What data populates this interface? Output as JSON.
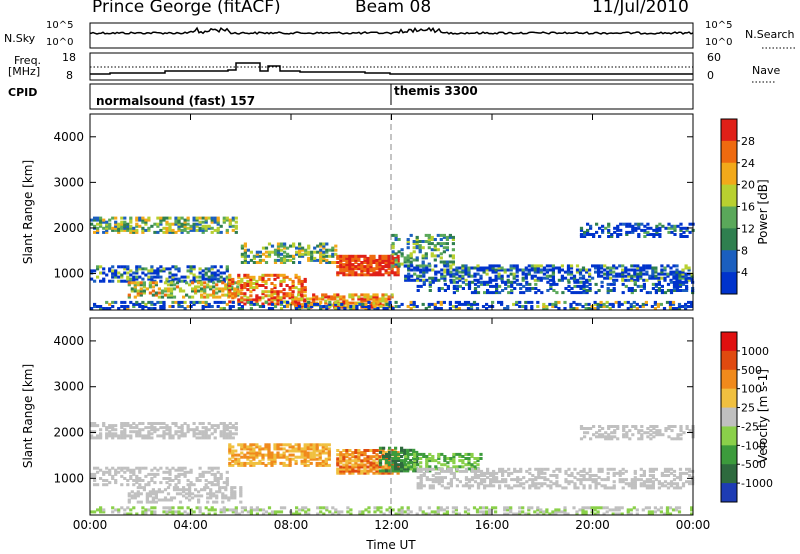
{
  "header": {
    "station": "Prince George (fitACF)",
    "beam": "Beam 08",
    "date": "11/Jul/2010"
  },
  "sky_panel": {
    "left_label": "N.Sky",
    "right_label": "N.Search",
    "tick_top_left": "10^5",
    "tick_bottom_left": "10^0",
    "tick_top_right": "10^5",
    "tick_bottom_right": "10^0"
  },
  "freq_panel": {
    "left_label_1": "Freq.",
    "left_label_2": "[MHz]",
    "right_label": "Nave",
    "left_ticks": [
      "18",
      "8"
    ],
    "right_ticks": [
      "60",
      "0"
    ]
  },
  "cpid_panel": {
    "label": "CPID",
    "mode_1": "normalsound (fast) 157",
    "mode_2": "themis 3300"
  },
  "chart_data": [
    {
      "type": "heatmap",
      "ylabel": "Slant Range [km]",
      "xlabel": "Time UT",
      "colorbar_label": "Power [dB]",
      "colorbar_ticks": [
        "28",
        "24",
        "20",
        "16",
        "12",
        "8",
        "4"
      ],
      "yticks": [
        "4000",
        "3000",
        "2000",
        "1000"
      ],
      "xticks": [
        "00:00",
        "04:00",
        "08:00",
        "12:00",
        "16:00",
        "20:00",
        "00:00"
      ],
      "ylim": [
        200,
        4500
      ],
      "xlim_hours": [
        0,
        24
      ],
      "colors": [
        "#0033cc",
        "#1b5fbf",
        "#2f7f4f",
        "#5aa85a",
        "#b8d030",
        "#f2a91a",
        "#ee6a10",
        "#e02018"
      ]
    },
    {
      "type": "heatmap",
      "ylabel": "Slant Range [km]",
      "xlabel": "Time UT",
      "colorbar_label": "Velocity [m s-1]",
      "colorbar_ticks": [
        "1000",
        "500",
        "100",
        "25",
        "-25",
        "-100",
        "-500",
        "-1000"
      ],
      "yticks": [
        "4000",
        "3000",
        "2000",
        "1000"
      ],
      "xticks": [
        "00:00",
        "04:00",
        "08:00",
        "12:00",
        "16:00",
        "20:00",
        "00:00"
      ],
      "ylim": [
        200,
        4500
      ],
      "xlim_hours": [
        0,
        24
      ],
      "colors": [
        "#1e3cb4",
        "#2e6a3e",
        "#3c9b3c",
        "#8ad04a",
        "#c0c0c0",
        "#f0c040",
        "#f08a1c",
        "#e04a10",
        "#e01010"
      ]
    }
  ],
  "footer": {
    "xlabel": "Time UT"
  }
}
